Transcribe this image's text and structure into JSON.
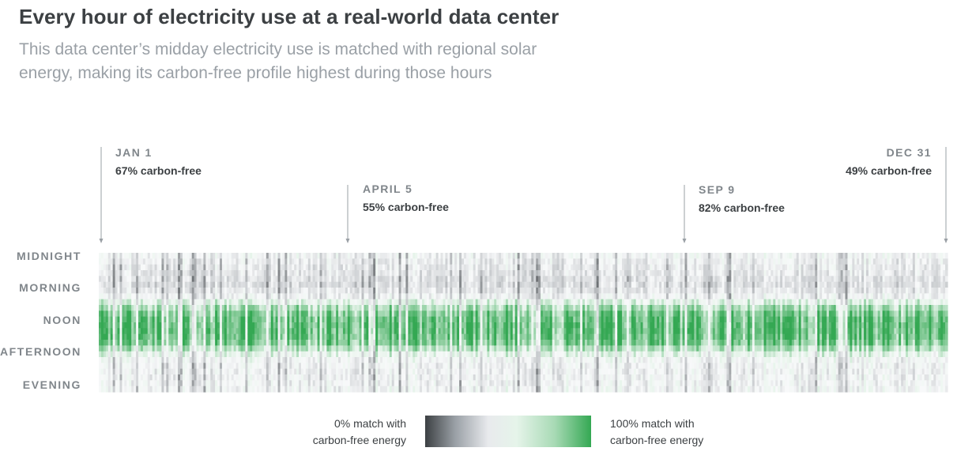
{
  "title": "Every hour of electricity use at a real-world data center",
  "subtitle": "This data center’s midday electricity use is matched with regional solar energy, making its carbon-free profile highest during those hours",
  "markers": [
    {
      "date": "JAN 1",
      "value": "67% carbon-free"
    },
    {
      "date": "APRIL 5",
      "value": "55% carbon-free"
    },
    {
      "date": "SEP 9",
      "value": "82% carbon-free"
    },
    {
      "date": "DEC 31",
      "value": "49% carbon-free"
    }
  ],
  "legend": {
    "low_line1": "0% match with",
    "low_line2": "carbon-free energy",
    "high_line1": "100% match with",
    "high_line2": "carbon-free energy"
  },
  "colors": {
    "low": "#3c4043",
    "mid": "#e6f4ea",
    "high": "#34a853"
  },
  "chart_data": {
    "type": "heatmap",
    "title": "Every hour of electricity use at a real-world data center",
    "x_range": [
      "JAN 1",
      "DEC 31"
    ],
    "x_days": 365,
    "y_labels": [
      "MIDNIGHT",
      "MORNING",
      "NOON",
      "AFTERNOON",
      "EVENING"
    ],
    "hours_per_day": 24,
    "value_range": [
      0,
      100
    ],
    "value_unit": "% match with carbon-free energy",
    "annotations": [
      {
        "date": "JAN 1",
        "day": 1,
        "carbon_free_pct": 67
      },
      {
        "date": "APRIL 5",
        "day": 95,
        "carbon_free_pct": 55
      },
      {
        "date": "SEP 9",
        "day": 252,
        "carbon_free_pct": 82
      },
      {
        "date": "DEC 31",
        "day": 365,
        "carbon_free_pct": 49
      }
    ],
    "hourly_profile_pct": [
      45,
      42,
      40,
      38,
      36,
      35,
      38,
      45,
      60,
      75,
      85,
      90,
      92,
      92,
      90,
      85,
      72,
      58,
      48,
      45,
      44,
      44,
      45,
      46
    ]
  }
}
